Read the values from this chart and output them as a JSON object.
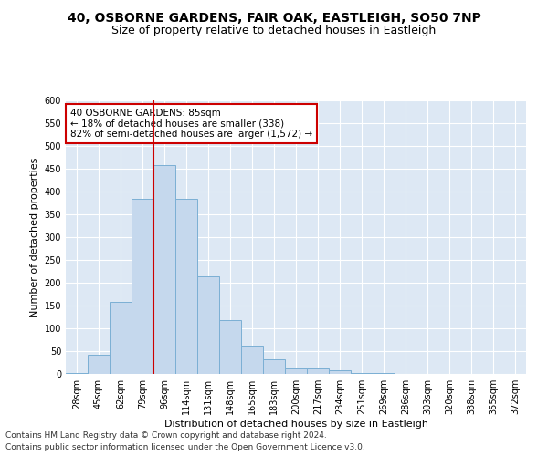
{
  "title1": "40, OSBORNE GARDENS, FAIR OAK, EASTLEIGH, SO50 7NP",
  "title2": "Size of property relative to detached houses in Eastleigh",
  "xlabel": "Distribution of detached houses by size in Eastleigh",
  "ylabel": "Number of detached properties",
  "categories": [
    "28sqm",
    "45sqm",
    "62sqm",
    "79sqm",
    "96sqm",
    "114sqm",
    "131sqm",
    "148sqm",
    "165sqm",
    "183sqm",
    "200sqm",
    "217sqm",
    "234sqm",
    "251sqm",
    "269sqm",
    "286sqm",
    "303sqm",
    "320sqm",
    "338sqm",
    "355sqm",
    "372sqm"
  ],
  "values": [
    3,
    42,
    158,
    385,
    458,
    385,
    215,
    118,
    62,
    32,
    13,
    13,
    8,
    3,
    2,
    1,
    0,
    0,
    0,
    0,
    0
  ],
  "bar_color": "#c5d8ed",
  "bar_edge_color": "#7bafd4",
  "bar_width": 1.0,
  "vline_x": 3.5,
  "vline_color": "#cc0000",
  "annotation_text": "40 OSBORNE GARDENS: 85sqm\n← 18% of detached houses are smaller (338)\n82% of semi-detached houses are larger (1,572) →",
  "annotation_box_color": "#ffffff",
  "annotation_box_edge": "#cc0000",
  "ylim": [
    0,
    600
  ],
  "yticks": [
    0,
    50,
    100,
    150,
    200,
    250,
    300,
    350,
    400,
    450,
    500,
    550,
    600
  ],
  "bg_color": "#dde8f4",
  "grid_color": "#ffffff",
  "fig_bg_color": "#ffffff",
  "footer1": "Contains HM Land Registry data © Crown copyright and database right 2024.",
  "footer2": "Contains public sector information licensed under the Open Government Licence v3.0.",
  "title_fontsize": 10,
  "subtitle_fontsize": 9,
  "axis_label_fontsize": 8,
  "tick_fontsize": 7,
  "annot_fontsize": 7.5,
  "footer_fontsize": 6.5
}
